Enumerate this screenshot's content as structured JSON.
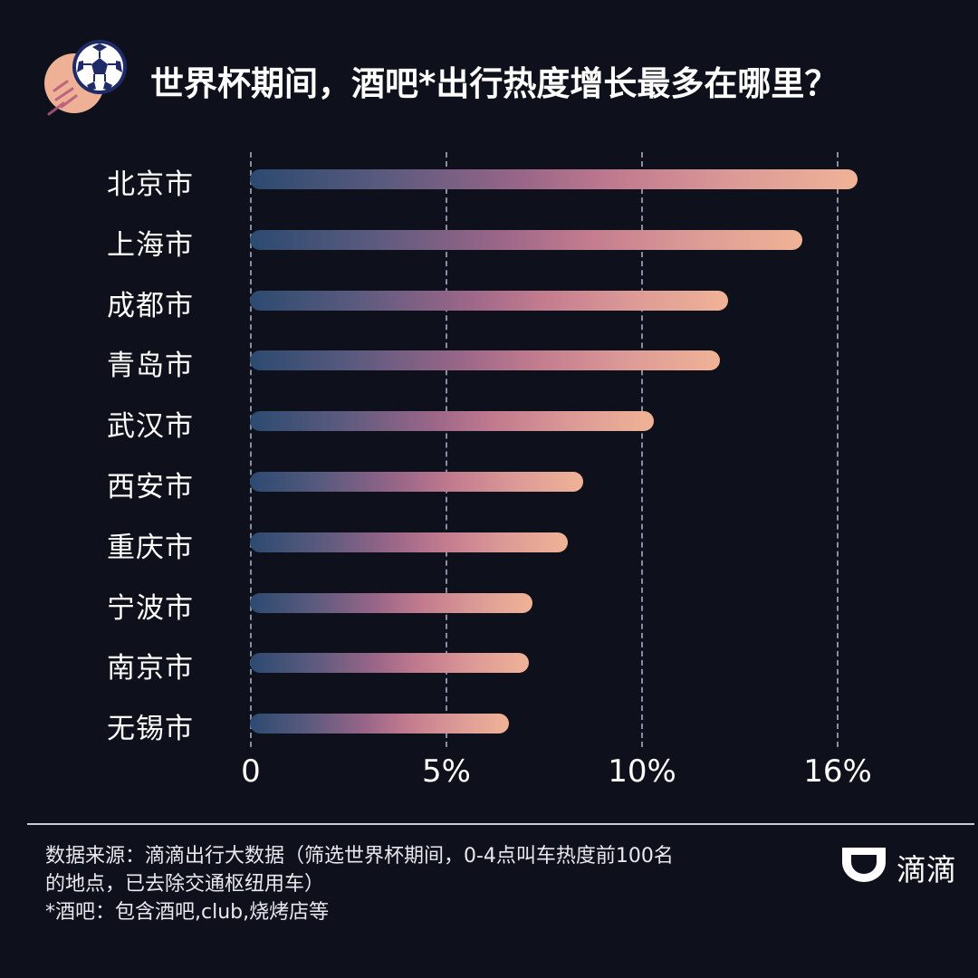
{
  "header": {
    "title": "世界杯期间，酒吧*出行热度增长最多在哪里？",
    "icon": "soccer-ball-icon"
  },
  "chart_data": {
    "type": "bar",
    "orientation": "horizontal",
    "title": "世界杯期间，酒吧*出行热度增长最多在哪里？",
    "xlabel": "",
    "ylabel": "",
    "categories": [
      "北京市",
      "上海市",
      "成都市",
      "青岛市",
      "武汉市",
      "西安市",
      "重庆市",
      "宁波市",
      "南京市",
      "无锡市"
    ],
    "values": [
      15.5,
      14.1,
      12.2,
      12.0,
      10.3,
      8.5,
      8.1,
      7.2,
      7.1,
      6.6
    ],
    "unit": "%",
    "x_ticks": [
      "0",
      "5%",
      "10%",
      "16%"
    ],
    "xlim": [
      0,
      16
    ],
    "grid": "vertical dashed",
    "legend": null,
    "colors": {
      "bar_start": "#2c4a70",
      "bar_mid": "#c07a8e",
      "bar_end": "#f0b396",
      "background": "#0e101c"
    }
  },
  "footer": {
    "source_line1": "数据来源：滴滴出行大数据（筛选世界杯期间，0-4点叫车热度前100名",
    "source_line2": "的地点，已去除交通枢纽用车）",
    "note": "*酒吧：包含酒吧,club,烧烤店等"
  },
  "brand": {
    "name": "滴滴",
    "icon": "didi-logo-icon"
  }
}
